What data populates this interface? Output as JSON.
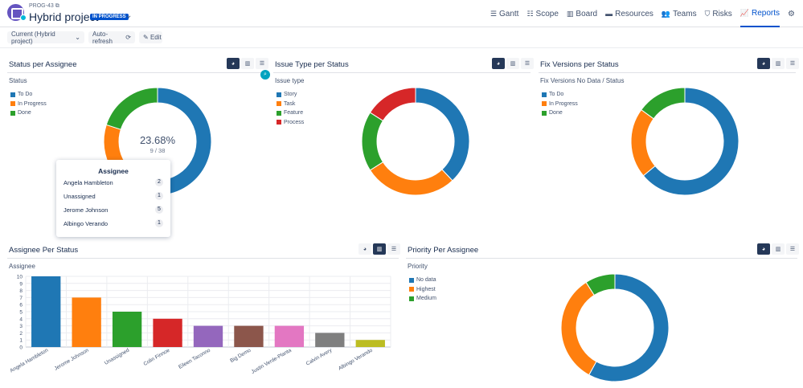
{
  "header": {
    "project_key": "PROG-43",
    "project_name": "Hybrid project",
    "status_badge": "IN PROGRESS",
    "nav": [
      {
        "label": "Gantt",
        "icon": "gantt-icon",
        "glyph": "☰",
        "active": false
      },
      {
        "label": "Scope",
        "icon": "scope-icon",
        "glyph": "☷",
        "active": false
      },
      {
        "label": "Board",
        "icon": "board-icon",
        "glyph": "▥",
        "active": false
      },
      {
        "label": "Resources",
        "icon": "resources-icon",
        "glyph": "▬",
        "active": false
      },
      {
        "label": "Teams",
        "icon": "teams-icon",
        "glyph": "👥",
        "active": false
      },
      {
        "label": "Risks",
        "icon": "risks-icon",
        "glyph": "⛉",
        "active": false
      },
      {
        "label": "Reports",
        "icon": "reports-icon",
        "glyph": "📈",
        "active": true
      }
    ]
  },
  "toolbar": {
    "scenario_label": "Current (Hybrid project)",
    "autorefresh_label": "Auto-refresh",
    "edit_label": "Edit"
  },
  "colors": {
    "blue": "#1f77b4",
    "orange": "#ff7f0e",
    "green": "#2ca02c",
    "red": "#d62728",
    "purple": "#9467bd",
    "brown": "#8c564b",
    "pink": "#e377c2",
    "gray": "#7f7f7f",
    "olive": "#bcbd22"
  },
  "panels": {
    "status_per_assignee": {
      "title": "Status per Assignee",
      "sublabel": "Status",
      "center_percent": "23.68%",
      "center_ratio": "9 / 38"
    },
    "issue_type_per_status": {
      "title": "Issue Type per Status",
      "sublabel": "Issue type"
    },
    "fix_versions_per_status": {
      "title": "Fix Versions per Status",
      "sublabel": "Fix Versions  No Data / Status"
    },
    "assignee_per_status": {
      "title": "Assignee Per Status",
      "sublabel": "Assignee"
    },
    "priority_per_assignee": {
      "title": "Priority Per Assignee",
      "sublabel": "Priority"
    }
  },
  "tooltip": {
    "title": "Assignee",
    "rows": [
      {
        "name": "Angela Hambleton",
        "count": "2"
      },
      {
        "name": "Unassigned",
        "count": "1"
      },
      {
        "name": "Jerome Johnson",
        "count": "5"
      },
      {
        "name": "Albingo Verando",
        "count": "1"
      }
    ]
  },
  "chart_data": [
    {
      "type": "pie",
      "title": "Status per Assignee",
      "categories": [
        "To Do",
        "In Progress",
        "Done"
      ],
      "values": [
        66,
        14,
        20
      ],
      "center_text": "23.68%",
      "center_subtext": "9 / 38"
    },
    {
      "type": "pie",
      "title": "Issue Type per Status",
      "categories": [
        "Story",
        "Task",
        "Feature",
        "Process"
      ],
      "values": [
        38,
        28,
        18,
        16
      ]
    },
    {
      "type": "pie",
      "title": "Fix Versions per Status",
      "categories": [
        "To Do",
        "In Progress",
        "Done"
      ],
      "values": [
        64,
        21,
        15
      ]
    },
    {
      "type": "bar",
      "title": "Assignee Per Status",
      "categories": [
        "Angela Hambleton",
        "Jerome Johnson",
        "Unassigned",
        "Colin Finnoe",
        "Eileen Taconno",
        "Big Demo",
        "Justin Verde-Planta",
        "Calvin Avery",
        "Albingo Verando"
      ],
      "values": [
        10,
        7,
        5,
        4,
        3,
        3,
        3,
        2,
        1
      ],
      "ylim": [
        0,
        10
      ],
      "yticks": [
        "0",
        "1",
        "2",
        "3",
        "4",
        "5",
        "6",
        "7",
        "8",
        "9",
        "10"
      ],
      "grid": true
    },
    {
      "type": "pie",
      "title": "Priority Per Assignee",
      "categories": [
        "No data",
        "Highest",
        "Medium"
      ],
      "values": [
        58,
        33,
        9
      ]
    }
  ]
}
